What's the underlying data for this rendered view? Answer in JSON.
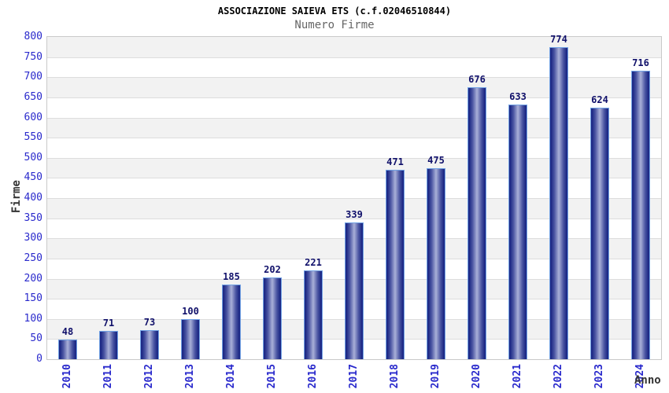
{
  "chart_data": {
    "type": "bar",
    "title": "ASSOCIAZIONE SAIEVA ETS (c.f.02046510844)",
    "subtitle": "Numero Firme",
    "xlabel": "Anno",
    "ylabel": "Firme",
    "categories": [
      "2010",
      "2011",
      "2012",
      "2013",
      "2014",
      "2015",
      "2016",
      "2017",
      "2018",
      "2019",
      "2020",
      "2021",
      "2022",
      "2023",
      "2024"
    ],
    "values": [
      48,
      71,
      73,
      100,
      185,
      202,
      221,
      339,
      471,
      475,
      676,
      633,
      774,
      624,
      716
    ],
    "ylim": [
      0,
      800
    ],
    "ytick_step": 50,
    "legend": "none",
    "grid": "horizontal-alternating-bands",
    "colors": {
      "title_text": "#000000",
      "subtitle_text": "#666666",
      "axis_label_text": "#333333",
      "tick_text": "#2929cc",
      "value_text": "#10106a",
      "band_fill": "#f2f2f2",
      "band_alt_fill": "#ffffff",
      "grid_line": "#dddddd",
      "plot_border": "#c9c9c9",
      "bar_edge": "#1e2a86",
      "bar_mid": "#4a55a2",
      "bar_center": "#a9b0d8",
      "bar_border": "#72a2e4",
      "background": "#ffffff"
    }
  }
}
